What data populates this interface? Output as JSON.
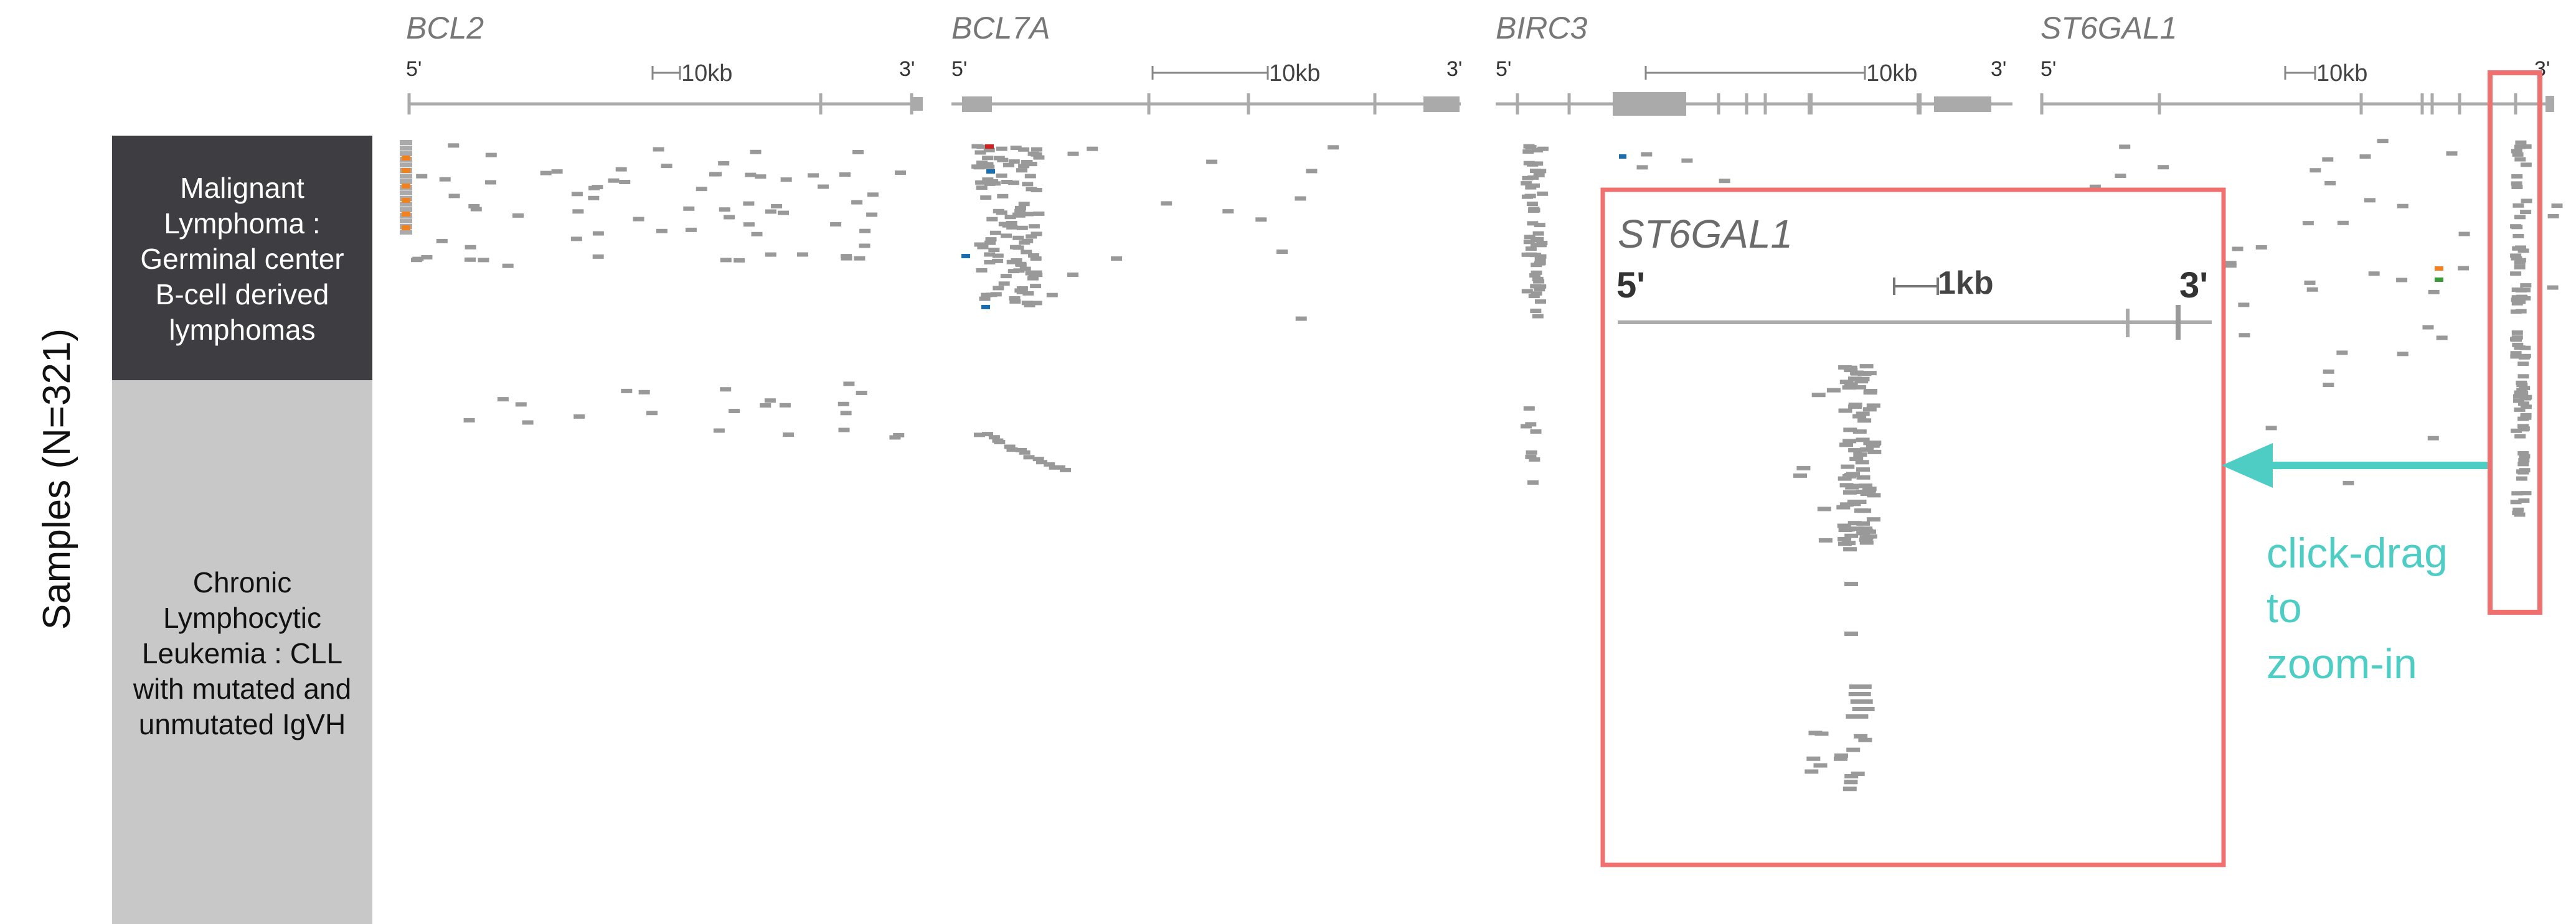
{
  "axis_label": "Samples (N=321)",
  "groups": [
    {
      "name": "gcb",
      "label_lines": [
        "Malignant",
        "Lymphoma :",
        "Germinal center",
        "B-cell derived",
        "lymphomas"
      ]
    },
    {
      "name": "cll",
      "label_lines": [
        "Chronic",
        "Lymphocytic",
        "Leukemia : CLL",
        "with mutated and",
        "unmutated IgVH"
      ]
    }
  ],
  "genes": [
    {
      "name": "BCL2",
      "five_prime": "5'",
      "three_prime": "3'",
      "scale": "10kb"
    },
    {
      "name": "BCL7A",
      "five_prime": "5'",
      "three_prime": "3'",
      "scale": "10kb"
    },
    {
      "name": "BIRC3",
      "five_prime": "5'",
      "three_prime": "3'",
      "scale": "10kb"
    },
    {
      "name": "ST6GAL1",
      "five_prime": "5'",
      "three_prime": "3'",
      "scale": "10kb"
    }
  ],
  "inset": {
    "name": "ST6GAL1",
    "five_prime": "5'",
    "three_prime": "3'",
    "scale": "1kb"
  },
  "hint": {
    "lines": [
      "click-drag",
      "to",
      "zoom-in"
    ]
  },
  "colors": {
    "mutation": "#999999",
    "highlight_box": "#f07070",
    "hint": "#4ecdc4",
    "group_dark": "#3d3d42",
    "group_light": "#c8c8c8",
    "orange": "#f08020",
    "blue": "#1a6eb0",
    "green": "#3a9a3a",
    "red": "#d02020"
  }
}
